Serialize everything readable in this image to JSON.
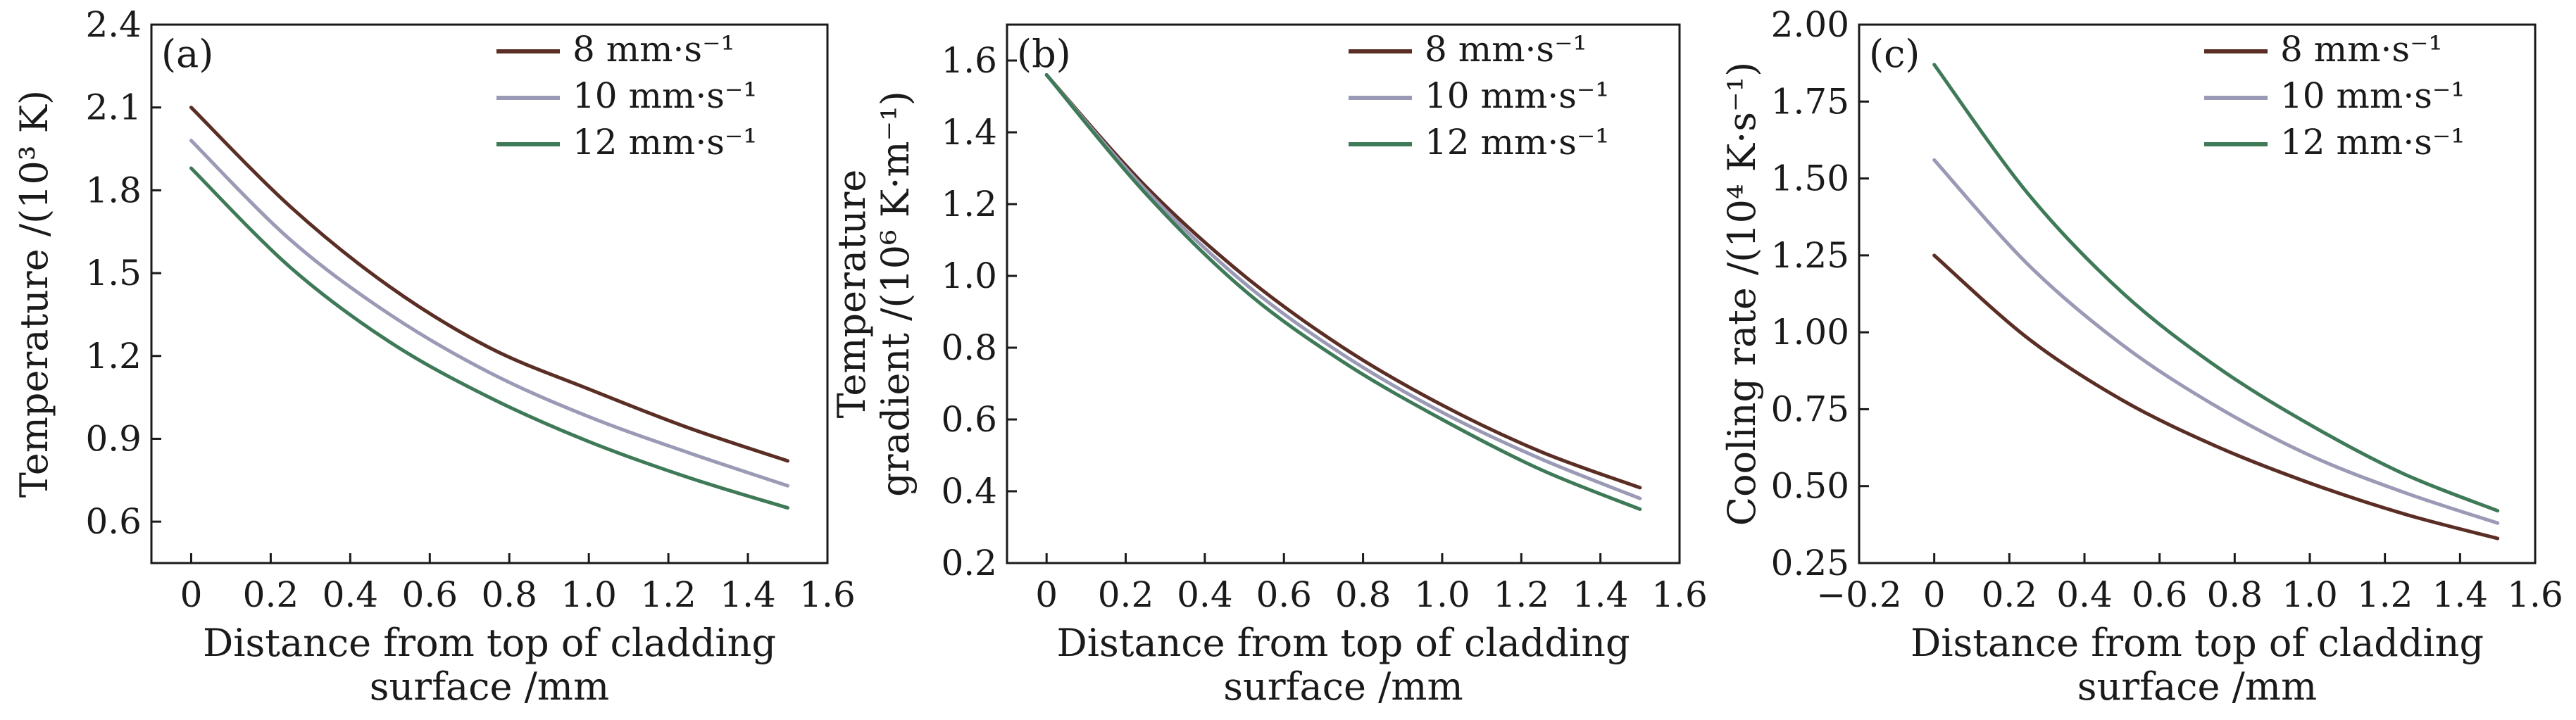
{
  "chart_data": [
    {
      "type": "line",
      "panel_label": "(a)",
      "xlabel": [
        "Distance from top of cladding",
        "surface /mm"
      ],
      "ylabel": [
        "Temperature /(10³ K)"
      ],
      "xlim": [
        -0.1,
        1.6
      ],
      "ylim": [
        0.45,
        2.4
      ],
      "xticks": [
        0,
        0.2,
        0.4,
        0.6,
        0.8,
        1.0,
        1.2,
        1.4,
        1.6
      ],
      "xtick_labels": [
        "0",
        "0.2",
        "0.4",
        "0.6",
        "0.8",
        "1.0",
        "1.2",
        "1.4",
        "1.6"
      ],
      "yticks": [
        0.6,
        0.9,
        1.2,
        1.5,
        1.8,
        2.1,
        2.4
      ],
      "ytick_labels": [
        "0.6",
        "0.9",
        "1.2",
        "1.5",
        "1.8",
        "2.1",
        "2.4"
      ],
      "legend": "top-right",
      "grid": false,
      "x": [
        0,
        0.25,
        0.5,
        0.75,
        1.0,
        1.25,
        1.5
      ],
      "series": [
        {
          "name": "8 mm·s⁻¹",
          "color": "#5a2e24",
          "values": [
            2.1,
            1.74,
            1.45,
            1.23,
            1.08,
            0.94,
            0.82
          ]
        },
        {
          "name": "10 mm·s⁻¹",
          "color": "#9a9ab6",
          "values": [
            1.98,
            1.62,
            1.35,
            1.14,
            0.98,
            0.85,
            0.73
          ]
        },
        {
          "name": "12 mm·s⁻¹",
          "color": "#3f7a58",
          "values": [
            1.88,
            1.52,
            1.25,
            1.05,
            0.89,
            0.76,
            0.65
          ]
        }
      ]
    },
    {
      "type": "line",
      "panel_label": "(b)",
      "xlabel": [
        "Distance from top of cladding",
        "surface /mm"
      ],
      "ylabel": [
        "Temperature",
        "gradient /(10⁶ K·m⁻¹)"
      ],
      "xlim": [
        -0.1,
        1.6
      ],
      "ylim": [
        0.2,
        1.7
      ],
      "xticks": [
        0,
        0.2,
        0.4,
        0.6,
        0.8,
        1.0,
        1.2,
        1.4,
        1.6
      ],
      "xtick_labels": [
        "0",
        "0.2",
        "0.4",
        "0.6",
        "0.8",
        "1.0",
        "1.2",
        "1.4",
        "1.6"
      ],
      "yticks": [
        0.2,
        0.4,
        0.6,
        0.8,
        1.0,
        1.2,
        1.4,
        1.6
      ],
      "ytick_labels": [
        "0.2",
        "0.4",
        "0.6",
        "0.8",
        "1.0",
        "1.2",
        "1.4",
        "1.6"
      ],
      "legend": "top-right",
      "grid": false,
      "x": [
        0,
        0.25,
        0.5,
        0.75,
        1.0,
        1.25,
        1.5
      ],
      "series": [
        {
          "name": "8 mm·s⁻¹",
          "color": "#5a2e24",
          "values": [
            1.56,
            1.25,
            1.0,
            0.8,
            0.64,
            0.51,
            0.41
          ]
        },
        {
          "name": "10 mm·s⁻¹",
          "color": "#9a9ab6",
          "values": [
            1.56,
            1.24,
            0.98,
            0.78,
            0.62,
            0.49,
            0.38
          ]
        },
        {
          "name": "12 mm·s⁻¹",
          "color": "#3f7a58",
          "values": [
            1.56,
            1.23,
            0.96,
            0.76,
            0.6,
            0.46,
            0.35
          ]
        }
      ]
    },
    {
      "type": "line",
      "panel_label": "(c)",
      "xlabel": [
        "Distance from top of cladding",
        "surface /mm"
      ],
      "ylabel": [
        "Cooling rate /(10⁴ K·s⁻¹)"
      ],
      "xlim": [
        -0.2,
        1.6
      ],
      "ylim": [
        0.25,
        2.0
      ],
      "xticks": [
        -0.2,
        0,
        0.2,
        0.4,
        0.6,
        0.8,
        1.0,
        1.2,
        1.4,
        1.6
      ],
      "xtick_labels": [
        "−0.2",
        "0",
        "0.2",
        "0.4",
        "0.6",
        "0.8",
        "1.0",
        "1.2",
        "1.4",
        "1.6"
      ],
      "yticks": [
        0.25,
        0.5,
        0.75,
        1.0,
        1.25,
        1.5,
        1.75,
        2.0
      ],
      "ytick_labels": [
        "0.25",
        "0.50",
        "0.75",
        "1.00",
        "1.25",
        "1.50",
        "1.75",
        "2.00"
      ],
      "legend": "top-right",
      "grid": false,
      "x": [
        0,
        0.25,
        0.5,
        0.75,
        1.0,
        1.25,
        1.5
      ],
      "series": [
        {
          "name": "8 mm·s⁻¹",
          "color": "#5a2e24",
          "values": [
            1.25,
            0.98,
            0.78,
            0.63,
            0.51,
            0.41,
            0.33
          ]
        },
        {
          "name": "10 mm·s⁻¹",
          "color": "#9a9ab6",
          "values": [
            1.56,
            1.22,
            0.96,
            0.76,
            0.6,
            0.48,
            0.38
          ]
        },
        {
          "name": "12 mm·s⁻¹",
          "color": "#3f7a58",
          "values": [
            1.87,
            1.45,
            1.13,
            0.89,
            0.7,
            0.54,
            0.42
          ]
        }
      ]
    }
  ]
}
